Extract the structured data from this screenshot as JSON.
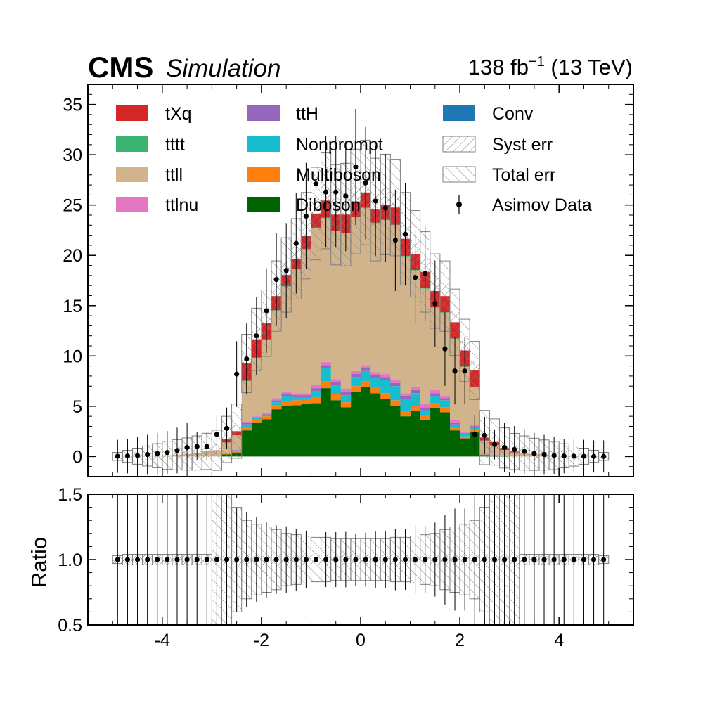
{
  "header": {
    "experiment": "CMS",
    "label": "Simulation",
    "lumi_main": "138 fb",
    "lumi_sup": "−1",
    "lumi_tail": " (13 TeV)"
  },
  "chart_data": [
    {
      "type": "bar",
      "stacked": true,
      "panel": "main",
      "xlim": [
        -5.5,
        5.5
      ],
      "ylim": [
        -2,
        37
      ],
      "yticks": [
        0,
        5,
        10,
        15,
        20,
        25,
        30,
        35
      ],
      "xticks": [
        -4,
        -2,
        0,
        2,
        4
      ],
      "bin_edges": [
        -5.0,
        -4.8,
        -4.6,
        -4.4,
        -4.2,
        -4.0,
        -3.8,
        -3.6,
        -3.4,
        -3.2,
        -3.0,
        -2.8,
        -2.6,
        -2.4,
        -2.2,
        -2.0,
        -1.8,
        -1.6,
        -1.4,
        -1.2,
        -1.0,
        -0.8,
        -0.6,
        -0.4,
        -0.2,
        0.0,
        0.2,
        0.4,
        0.6,
        0.8,
        1.0,
        1.2,
        1.4,
        1.6,
        1.8,
        2.0,
        2.2,
        2.4,
        2.6,
        2.8,
        3.0,
        3.2,
        3.4,
        3.6,
        3.8,
        4.0,
        4.2,
        4.4,
        4.6,
        4.8,
        5.0
      ],
      "series": [
        {
          "name": "Diboson",
          "color": "#006400",
          "values": [
            0,
            0,
            0,
            0,
            0,
            0,
            0,
            0,
            0,
            0,
            0,
            0.2,
            0.4,
            2.6,
            3.4,
            3.7,
            4.7,
            5.0,
            5.1,
            5.2,
            5.3,
            6.8,
            5.6,
            4.9,
            6.4,
            6.9,
            6.3,
            5.7,
            5.0,
            4.0,
            4.5,
            3.6,
            4.8,
            4.4,
            2.6,
            1.8,
            2.4,
            0.15,
            0.1,
            0.05,
            0,
            0,
            0,
            0,
            0,
            0,
            0,
            0,
            0,
            0
          ]
        },
        {
          "name": "Multiboson",
          "color": "#ff7f0e",
          "values": [
            0,
            0,
            0,
            0,
            0,
            0,
            0,
            0,
            0,
            0,
            0,
            0.05,
            0.1,
            0.3,
            0.3,
            0.3,
            0.4,
            0.5,
            0.5,
            0.5,
            0.6,
            0.7,
            0.6,
            0.5,
            0.6,
            0.6,
            0.6,
            0.6,
            0.6,
            0.5,
            0.5,
            0.5,
            0.5,
            0.5,
            0.3,
            0.2,
            0.3,
            0.05,
            0.05,
            0,
            0,
            0,
            0,
            0,
            0,
            0,
            0,
            0,
            0,
            0
          ]
        },
        {
          "name": "Nonprompt",
          "color": "#17becf",
          "values": [
            0,
            0,
            0,
            0,
            0,
            0,
            0,
            0,
            0,
            0,
            0,
            0.05,
            0.1,
            0.3,
            0.1,
            0.1,
            0.3,
            0.5,
            0.3,
            0.2,
            0.6,
            1.3,
            0.9,
            0.7,
            0.9,
            1.0,
            0.9,
            1.3,
            1.4,
            1.2,
            1.3,
            0.5,
            0.7,
            0.7,
            0.3,
            0.2,
            0.2,
            0.02,
            0.02,
            0,
            0,
            0,
            0,
            0,
            0,
            0,
            0,
            0,
            0,
            0
          ]
        },
        {
          "name": "ttH",
          "color": "#9467bd",
          "values": [
            0,
            0,
            0,
            0,
            0,
            0,
            0,
            0,
            0,
            0,
            0,
            0.03,
            0.05,
            0.15,
            0.1,
            0.1,
            0.2,
            0.2,
            0.2,
            0.2,
            0.3,
            0.3,
            0.3,
            0.3,
            0.3,
            0.3,
            0.3,
            0.3,
            0.3,
            0.3,
            0.3,
            0.3,
            0.3,
            0.2,
            0.2,
            0.1,
            0.1,
            0.02,
            0.02,
            0,
            0,
            0,
            0,
            0,
            0,
            0,
            0,
            0,
            0,
            0
          ]
        },
        {
          "name": "ttlnu",
          "color": "#e377c2",
          "values": [
            0,
            0,
            0,
            0,
            0,
            0,
            0,
            0,
            0,
            0,
            0,
            0.05,
            0.05,
            0.15,
            0.1,
            0.1,
            0.2,
            0.2,
            0.2,
            0.2,
            0.3,
            0.3,
            0.3,
            0.3,
            0.3,
            0.3,
            0.3,
            0.3,
            0.3,
            0.3,
            0.3,
            0.3,
            0.3,
            0.2,
            0.2,
            0.1,
            0.1,
            0.03,
            0.03,
            0,
            0,
            0,
            0,
            0,
            0,
            0,
            0,
            0,
            0,
            0
          ]
        },
        {
          "name": "ttll",
          "color": "#d2b48c",
          "values": [
            0.01,
            0.02,
            0.03,
            0.05,
            0.08,
            0.12,
            0.18,
            0.25,
            0.35,
            0.5,
            0.6,
            1.0,
            1.4,
            4.0,
            5.8,
            7.3,
            8.7,
            10.5,
            12.3,
            14.3,
            15.6,
            14.3,
            14.7,
            15.5,
            15.3,
            15.6,
            14.8,
            15.3,
            15.4,
            13.6,
            11.6,
            11.5,
            8.2,
            8.3,
            8.1,
            6.5,
            3.8,
            1.3,
            0.9,
            0.6,
            0.4,
            0.3,
            0.2,
            0.15,
            0.1,
            0.07,
            0.04,
            0.03,
            0.02,
            0.01
          ]
        },
        {
          "name": "tttt",
          "color": "#3cb371",
          "values": [
            0,
            0,
            0,
            0,
            0,
            0,
            0,
            0,
            0,
            0,
            0,
            0.02,
            0.02,
            0.05,
            0.05,
            0.05,
            0.05,
            0.05,
            0.05,
            0.05,
            0.05,
            0.05,
            0.05,
            0.05,
            0.05,
            0.05,
            0.05,
            0.05,
            0.05,
            0.05,
            0.05,
            0.05,
            0.05,
            0.05,
            0.05,
            0.05,
            0.05,
            0.02,
            0.02,
            0,
            0,
            0,
            0,
            0,
            0,
            0,
            0,
            0,
            0,
            0
          ]
        },
        {
          "name": "tXq",
          "color": "#d62728",
          "values": [
            0,
            0,
            0,
            0,
            0,
            0,
            0,
            0,
            0,
            0.01,
            0.02,
            0.3,
            0.4,
            1.7,
            1.8,
            1.6,
            1.4,
            1.1,
            1.0,
            1.3,
            1.4,
            1.7,
            1.6,
            1.8,
            1.5,
            1.5,
            1.3,
            1.5,
            1.7,
            1.7,
            1.6,
            1.6,
            1.6,
            1.6,
            1.6,
            1.6,
            1.6,
            0.3,
            0.3,
            0.2,
            0.1,
            0.05,
            0.02,
            0,
            0,
            0,
            0,
            0,
            0,
            0
          ]
        },
        {
          "name": "Conv",
          "color": "#1f77b4",
          "values": [
            0,
            0,
            0,
            0,
            0,
            0,
            0,
            0,
            0,
            0,
            0,
            0,
            0,
            0,
            0,
            0,
            0,
            0,
            0,
            0,
            0,
            0,
            0,
            0,
            0,
            0,
            0,
            0,
            0,
            0,
            0,
            0,
            0,
            0,
            0,
            0,
            0,
            0,
            0,
            0,
            0,
            0,
            0,
            0,
            0,
            0,
            0,
            0,
            0,
            0
          ]
        }
      ],
      "asimov_data": {
        "name": "Asimov Data",
        "x": [
          -4.9,
          -4.7,
          -4.5,
          -4.3,
          -4.1,
          -3.9,
          -3.7,
          -3.5,
          -3.3,
          -3.1,
          -2.9,
          -2.7,
          -2.5,
          -2.3,
          -2.1,
          -1.9,
          -1.7,
          -1.5,
          -1.3,
          -1.1,
          -0.9,
          -0.7,
          -0.5,
          -0.3,
          -0.1,
          0.1,
          0.3,
          0.5,
          0.7,
          0.9,
          1.1,
          1.3,
          1.5,
          1.7,
          1.9,
          2.1,
          2.3,
          2.5,
          2.7,
          2.9,
          3.1,
          3.3,
          3.5,
          3.7,
          3.9,
          4.1,
          4.3,
          4.5,
          4.7,
          4.9
        ],
        "y": [
          0.02,
          0.05,
          0.1,
          0.2,
          0.3,
          0.4,
          0.6,
          0.9,
          1.0,
          1.0,
          2.2,
          2.8,
          8.2,
          9.7,
          12.0,
          14.5,
          17.6,
          18.5,
          21.2,
          23.9,
          27.1,
          26.3,
          26.3,
          25.9,
          28.8,
          27.2,
          25.4,
          24.7,
          21.5,
          22.1,
          17.8,
          18.2,
          15.2,
          10.7,
          8.5,
          8.5,
          2.2,
          2.1,
          1.2,
          0.9,
          0.7,
          0.5,
          0.3,
          0.2,
          0.1,
          0.05,
          0.03,
          0.02,
          0.01,
          0.01
        ]
      },
      "total_err_band": [
        0.4,
        0.6,
        0.8,
        1.0,
        1.2,
        1.4,
        1.5,
        1.6,
        1.7,
        1.8,
        2.0,
        2.3,
        2.7,
        2.9,
        3.1,
        3.3,
        3.5,
        3.7,
        4.0,
        4.3,
        4.6,
        4.8,
        5.0,
        5.1,
        5.2,
        5.2,
        5.1,
        5.0,
        4.8,
        4.6,
        4.3,
        4.0,
        3.7,
        3.5,
        3.3,
        3.1,
        2.9,
        2.7,
        2.3,
        2.0,
        1.8,
        1.7,
        1.6,
        1.5,
        1.4,
        1.2,
        1.0,
        0.8,
        0.6,
        0.4
      ],
      "legend_placement": "top",
      "legend": [
        "tXq",
        "tttt",
        "ttll",
        "ttlnu",
        "ttH",
        "Nonprompt",
        "Multiboson",
        "Diboson",
        "Conv",
        "Syst err",
        "Total err",
        "Asimov Data"
      ]
    },
    {
      "type": "scatter",
      "panel": "ratio",
      "ylabel": "Ratio",
      "ylim": [
        0.5,
        1.5
      ],
      "yticks": [
        0.5,
        1.0,
        1.5
      ],
      "ytick_labels": [
        "0.5",
        "1.0",
        "1.5"
      ],
      "xticks": [
        -4,
        -2,
        0,
        2,
        4
      ],
      "xtick_labels": [
        "-4",
        "-2",
        "0",
        "2",
        "4"
      ],
      "ratio_values": [
        1,
        1,
        1,
        1,
        1,
        1,
        1,
        1,
        1,
        1,
        1,
        1,
        1,
        1,
        1,
        1,
        1,
        1,
        1,
        1,
        1,
        1,
        1,
        1,
        1,
        1,
        1,
        1,
        1,
        1,
        1,
        1,
        1,
        1,
        1,
        1,
        1,
        1,
        1,
        1,
        1,
        1,
        1,
        1,
        1,
        1,
        1,
        1,
        1,
        1
      ],
      "syst_band_halfwidth": [
        0.03,
        0.04,
        0.04,
        0.04,
        0.04,
        0.04,
        0.04,
        0.04,
        0.04,
        0.04,
        0.04,
        0.04,
        0.04,
        0.04,
        0.04,
        0.04,
        0.04,
        0.04,
        0.04,
        0.04,
        0.04,
        0.04,
        0.04,
        0.04,
        0.04,
        0.04,
        0.04,
        0.04,
        0.04,
        0.04,
        0.04,
        0.04,
        0.04,
        0.04,
        0.04,
        0.04,
        0.04,
        0.04,
        0.04,
        0.04,
        0.04,
        0.04,
        0.04,
        0.04,
        0.04,
        0.04,
        0.04,
        0.04,
        0.04,
        0.03
      ],
      "total_band_halfwidth": [
        0.03,
        0.04,
        0.04,
        0.04,
        0.04,
        0.04,
        0.04,
        0.04,
        0.04,
        0.04,
        0.6,
        0.6,
        0.4,
        0.3,
        0.27,
        0.25,
        0.23,
        0.2,
        0.19,
        0.18,
        0.17,
        0.17,
        0.16,
        0.16,
        0.16,
        0.16,
        0.16,
        0.16,
        0.17,
        0.17,
        0.18,
        0.19,
        0.2,
        0.23,
        0.25,
        0.27,
        0.3,
        0.4,
        0.6,
        0.6,
        0.6,
        0.04,
        0.04,
        0.04,
        0.04,
        0.04,
        0.04,
        0.04,
        0.04,
        0.03
      ]
    }
  ],
  "colors": {
    "band_stroke": "#808080",
    "axis": "#000000"
  }
}
